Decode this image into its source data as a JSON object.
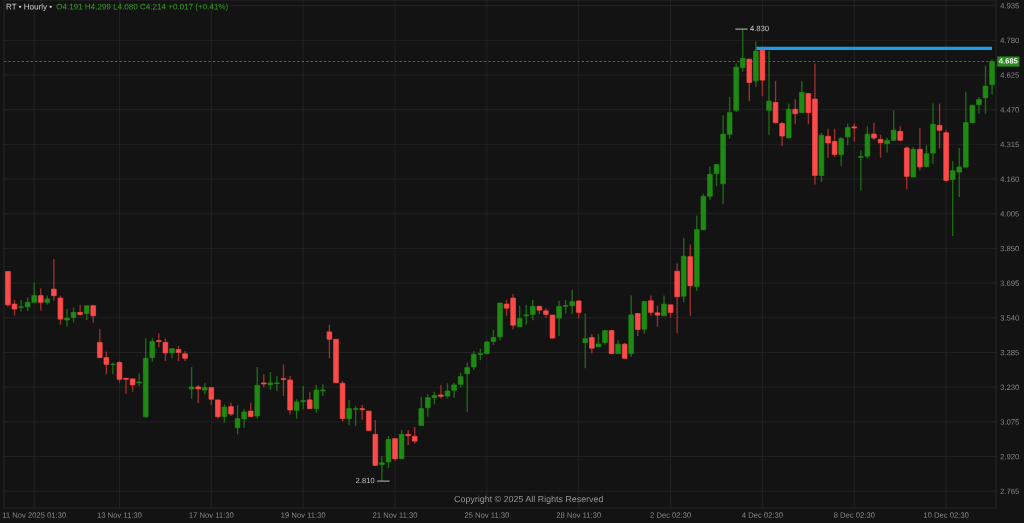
{
  "chart_data": {
    "type": "candlestick",
    "title": "RT • Hourly •",
    "subtitle": "O4.191 H4.299 L4.080 C4.214 +0.017 (+0.41%)",
    "categories": [
      null,
      null,
      null,
      null,
      "11 Nov 2025 01:30",
      null,
      null,
      null,
      null,
      null,
      null,
      null,
      null,
      null,
      null,
      null,
      null,
      "13 Nov 11:30",
      null,
      null,
      null,
      null,
      null,
      null,
      null,
      null,
      null,
      null,
      null,
      null,
      null,
      "17 Nov 11:30",
      null,
      null,
      null,
      null,
      null,
      null,
      null,
      null,
      null,
      null,
      null,
      null,
      null,
      "19 Nov 11:30",
      null,
      null,
      null,
      null,
      null,
      null,
      null,
      null,
      null,
      null,
      null,
      null,
      null,
      "21 Nov 11:30",
      null,
      null,
      null,
      null,
      null,
      null,
      null,
      null,
      null,
      null,
      null,
      null,
      null,
      "25 Nov 11:30",
      null,
      null,
      null,
      null,
      null,
      null,
      null,
      null,
      null,
      null,
      null,
      null,
      null,
      "28 Nov 11:30",
      null,
      null,
      null,
      null,
      null,
      null,
      null,
      null,
      null,
      null,
      null,
      null,
      null,
      "2 Dec 02:30",
      null,
      null,
      null,
      null,
      null,
      null,
      null,
      null,
      null,
      null,
      null,
      null,
      null,
      "4 Dec 02:30",
      null,
      null,
      null,
      null,
      null,
      null,
      null,
      null,
      null,
      null,
      null,
      null,
      null,
      "8 Dec 02:30",
      null,
      null,
      null,
      null,
      null,
      null,
      null,
      null,
      null,
      null,
      null,
      null,
      null,
      "10 Dec 02:30",
      null,
      null,
      null,
      null,
      null,
      null,
      null
    ],
    "ohlc": [
      [
        3.747,
        3.747,
        3.589,
        3.598
      ],
      [
        3.601,
        3.619,
        3.549,
        3.579
      ],
      [
        3.586,
        3.619,
        3.568,
        3.589
      ],
      [
        3.589,
        3.631,
        3.571,
        3.609
      ],
      [
        3.609,
        3.698,
        3.609,
        3.639
      ],
      [
        3.639,
        3.671,
        3.571,
        3.609
      ],
      [
        3.609,
        3.639,
        3.598,
        3.624
      ],
      [
        3.668,
        3.803,
        3.616,
        3.639
      ],
      [
        3.628,
        3.639,
        3.509,
        3.534
      ],
      [
        3.53,
        3.579,
        3.5,
        3.538
      ],
      [
        3.541,
        3.586,
        3.519,
        3.564
      ],
      [
        3.564,
        3.598,
        3.549,
        3.555
      ],
      [
        3.559,
        3.594,
        3.53,
        3.594
      ],
      [
        3.594,
        3.598,
        3.519,
        3.549
      ],
      [
        3.43,
        3.489,
        3.359,
        3.362
      ],
      [
        3.362,
        3.389,
        3.288,
        3.332
      ],
      [
        3.331,
        3.34,
        3.288,
        3.333
      ],
      [
        3.34,
        3.347,
        3.25,
        3.265
      ],
      [
        3.27,
        3.27,
        3.201,
        3.265
      ],
      [
        3.267,
        3.267,
        3.21,
        3.24
      ],
      [
        3.249,
        3.291,
        3.235,
        3.253
      ],
      [
        3.098,
        3.449,
        3.093,
        3.359
      ],
      [
        3.362,
        3.449,
        3.344,
        3.434
      ],
      [
        3.438,
        3.47,
        3.407,
        3.434
      ],
      [
        3.43,
        3.447,
        3.347,
        3.383
      ],
      [
        3.383,
        3.402,
        3.359,
        3.402
      ],
      [
        3.398,
        3.414,
        3.347,
        3.385
      ],
      [
        3.379,
        3.392,
        3.347,
        3.359
      ],
      [
        3.222,
        3.32,
        3.177,
        3.231
      ],
      [
        3.231,
        3.24,
        3.158,
        3.222
      ],
      [
        3.217,
        3.25,
        3.198,
        3.228
      ],
      [
        3.228,
        3.228,
        3.15,
        3.176
      ],
      [
        3.173,
        3.173,
        3.09,
        3.098
      ],
      [
        3.098,
        3.153,
        3.071,
        3.141
      ],
      [
        3.143,
        3.161,
        3.101,
        3.11
      ],
      [
        3.049,
        3.15,
        3.019,
        3.089
      ],
      [
        3.089,
        3.131,
        3.049,
        3.119
      ],
      [
        3.123,
        3.161,
        3.099,
        3.099
      ],
      [
        3.101,
        3.32,
        3.09,
        3.238
      ],
      [
        3.249,
        3.288,
        3.228,
        3.244
      ],
      [
        3.241,
        3.298,
        3.217,
        3.249
      ],
      [
        3.246,
        3.28,
        3.213,
        3.249
      ],
      [
        3.268,
        3.332,
        3.191,
        3.264
      ],
      [
        3.262,
        3.28,
        3.108,
        3.128
      ],
      [
        3.126,
        3.176,
        3.089,
        3.164
      ],
      [
        3.165,
        3.235,
        3.131,
        3.17
      ],
      [
        3.173,
        3.21,
        3.134,
        3.134
      ],
      [
        3.134,
        3.24,
        3.116,
        3.217
      ],
      [
        3.213,
        3.243,
        3.19,
        3.217
      ],
      [
        3.477,
        3.509,
        3.359,
        3.444
      ],
      [
        3.444,
        3.444,
        3.25,
        3.25
      ],
      [
        3.247,
        3.258,
        3.078,
        3.09
      ],
      [
        3.089,
        3.173,
        3.059,
        3.134
      ],
      [
        3.131,
        3.146,
        3.056,
        3.134
      ],
      [
        3.134,
        3.15,
        3.084,
        3.129
      ],
      [
        3.123,
        3.123,
        3.034,
        3.037
      ],
      [
        3.019,
        3.083,
        2.877,
        2.881
      ],
      [
        2.884,
        2.922,
        2.81,
        2.892
      ],
      [
        2.896,
        3.011,
        2.869,
        2.996
      ],
      [
        3.0,
        3.0,
        2.899,
        2.91
      ],
      [
        2.91,
        3.038,
        2.91,
        3.019
      ],
      [
        3.019,
        3.038,
        2.971,
        3.013
      ],
      [
        3.01,
        3.052,
        2.978,
        2.989
      ],
      [
        3.059,
        3.187,
        3.059,
        3.134
      ],
      [
        3.138,
        3.198,
        3.098,
        3.183
      ],
      [
        3.183,
        3.21,
        3.153,
        3.193
      ],
      [
        3.195,
        3.24,
        3.179,
        3.189
      ],
      [
        3.19,
        3.247,
        3.179,
        3.213
      ],
      [
        3.216,
        3.25,
        3.183,
        3.24
      ],
      [
        3.243,
        3.295,
        3.228,
        3.277
      ],
      [
        3.29,
        3.34,
        3.12,
        3.317
      ],
      [
        3.32,
        3.392,
        3.307,
        3.377
      ],
      [
        3.376,
        3.402,
        3.35,
        3.38
      ],
      [
        3.38,
        3.437,
        3.377,
        3.432
      ],
      [
        3.434,
        3.486,
        3.419,
        3.452
      ],
      [
        3.455,
        3.606,
        3.44,
        3.606
      ],
      [
        3.601,
        3.621,
        3.549,
        3.583
      ],
      [
        3.628,
        3.646,
        3.489,
        3.507
      ],
      [
        3.5,
        3.594,
        3.5,
        3.537
      ],
      [
        3.549,
        3.598,
        3.509,
        3.553
      ],
      [
        3.555,
        3.619,
        3.529,
        3.591
      ],
      [
        3.591,
        3.594,
        3.556,
        3.574
      ],
      [
        3.571,
        3.583,
        3.538,
        3.555
      ],
      [
        3.552,
        3.552,
        3.449,
        3.449
      ],
      [
        3.538,
        3.616,
        3.459,
        3.591
      ],
      [
        3.591,
        3.619,
        3.559,
        3.595
      ],
      [
        3.594,
        3.664,
        3.556,
        3.612
      ],
      [
        3.615,
        3.619,
        3.537,
        3.564
      ],
      [
        3.429,
        3.559,
        3.314,
        3.447
      ],
      [
        3.452,
        3.467,
        3.38,
        3.404
      ],
      [
        3.41,
        3.467,
        3.41,
        3.423
      ],
      [
        3.429,
        3.483,
        3.419,
        3.483
      ],
      [
        3.483,
        3.483,
        3.38,
        3.38
      ],
      [
        3.38,
        3.44,
        3.38,
        3.422
      ],
      [
        3.422,
        3.428,
        3.355,
        3.359
      ],
      [
        3.38,
        3.639,
        3.365,
        3.553
      ],
      [
        3.559,
        3.559,
        3.459,
        3.488
      ],
      [
        3.489,
        3.613,
        3.47,
        3.613
      ],
      [
        3.616,
        3.639,
        3.549,
        3.564
      ],
      [
        3.562,
        3.594,
        3.5,
        3.552
      ],
      [
        3.549,
        3.639,
        3.549,
        3.601
      ],
      [
        3.598,
        3.598,
        3.541,
        3.564
      ],
      [
        3.748,
        3.783,
        3.47,
        3.634
      ],
      [
        3.636,
        3.897,
        3.609,
        3.815
      ],
      [
        3.813,
        3.867,
        3.549,
        3.683
      ],
      [
        3.68,
        3.997,
        3.661,
        3.934
      ],
      [
        3.933,
        4.094,
        3.933,
        4.083
      ],
      [
        4.083,
        4.216,
        4.067,
        4.181
      ],
      [
        4.184,
        4.225,
        4.128,
        4.225
      ],
      [
        4.139,
        4.445,
        4.049,
        4.36
      ],
      [
        4.36,
        4.527,
        4.34,
        4.457
      ],
      [
        4.467,
        4.676,
        4.46,
        4.66
      ],
      [
        4.658,
        4.83,
        4.639,
        4.699
      ],
      [
        4.696,
        4.696,
        4.508,
        4.591
      ],
      [
        4.599,
        4.774,
        4.572,
        4.732
      ],
      [
        4.736,
        4.736,
        4.532,
        4.602
      ],
      [
        4.467,
        4.732,
        4.358,
        4.508
      ],
      [
        4.502,
        4.599,
        4.408,
        4.412
      ],
      [
        4.408,
        4.415,
        4.308,
        4.352
      ],
      [
        4.345,
        4.497,
        4.34,
        4.472
      ],
      [
        4.472,
        4.517,
        4.405,
        4.452
      ],
      [
        4.457,
        4.597,
        4.457,
        4.547
      ],
      [
        4.542,
        4.542,
        4.405,
        4.457
      ],
      [
        4.517,
        4.676,
        4.136,
        4.176
      ],
      [
        4.176,
        4.366,
        4.146,
        4.355
      ],
      [
        4.351,
        4.385,
        4.255,
        4.321
      ],
      [
        4.328,
        4.385,
        4.258,
        4.27
      ],
      [
        4.269,
        4.348,
        4.218,
        4.34
      ],
      [
        4.348,
        4.408,
        4.311,
        4.39
      ],
      [
        4.393,
        4.408,
        4.328,
        4.388
      ],
      [
        4.257,
        4.288,
        4.109,
        4.261
      ],
      [
        4.262,
        4.396,
        4.251,
        4.36
      ],
      [
        4.361,
        4.412,
        4.333,
        4.343
      ],
      [
        4.337,
        4.358,
        4.255,
        4.323
      ],
      [
        4.318,
        4.345,
        4.278,
        4.333
      ],
      [
        4.333,
        4.467,
        4.333,
        4.378
      ],
      [
        4.373,
        4.396,
        4.33,
        4.333
      ],
      [
        4.299,
        4.306,
        4.113,
        4.172
      ],
      [
        4.169,
        4.303,
        4.169,
        4.293
      ],
      [
        4.293,
        4.388,
        4.199,
        4.214
      ],
      [
        4.216,
        4.311,
        4.211,
        4.273
      ],
      [
        4.276,
        4.497,
        4.228,
        4.405
      ],
      [
        4.4,
        4.497,
        4.296,
        4.378
      ],
      [
        4.367,
        4.378,
        4.149,
        4.154
      ],
      [
        4.158,
        4.239,
        3.905,
        4.197
      ],
      [
        4.191,
        4.299,
        4.08,
        4.214
      ],
      [
        4.213,
        4.55,
        4.213,
        4.412
      ],
      [
        4.412,
        4.49,
        4.412,
        4.49
      ],
      [
        4.493,
        4.527,
        4.452,
        4.515
      ],
      [
        4.523,
        4.666,
        4.452,
        4.575
      ],
      [
        4.582,
        4.694,
        4.537,
        4.685
      ]
    ],
    "series": [
      {
        "type": "line",
        "color": "#1e9de6",
        "values": [
          null,
          null,
          null,
          null,
          null,
          null,
          null,
          null,
          null,
          null,
          null,
          null,
          null,
          null,
          null,
          null,
          null,
          null,
          null,
          null,
          null,
          null,
          null,
          null,
          null,
          null,
          null,
          null,
          null,
          null,
          null,
          null,
          null,
          null,
          null,
          null,
          null,
          null,
          null,
          null,
          null,
          null,
          null,
          null,
          null,
          null,
          null,
          null,
          null,
          null,
          null,
          null,
          null,
          null,
          null,
          null,
          null,
          null,
          null,
          null,
          null,
          null,
          null,
          null,
          null,
          null,
          null,
          null,
          null,
          null,
          null,
          null,
          null,
          null,
          null,
          null,
          null,
          null,
          null,
          null,
          null,
          null,
          null,
          null,
          null,
          null,
          null,
          null,
          null,
          null,
          null,
          null,
          null,
          null,
          null,
          null,
          null,
          null,
          null,
          null,
          null,
          null,
          null,
          null,
          null,
          null,
          null,
          null,
          null,
          null,
          null,
          null,
          null,
          null,
          4.744,
          4.744,
          4.744,
          4.744,
          4.744,
          4.744,
          4.744,
          4.744,
          4.744,
          4.744,
          4.744,
          4.744,
          4.744,
          4.744,
          4.744,
          4.744,
          4.744,
          4.744,
          4.744,
          4.744,
          4.744,
          4.744,
          4.744,
          4.744,
          4.744,
          4.744,
          4.744,
          4.744,
          4.744,
          4.744,
          4.744,
          4.744,
          4.744,
          4.744,
          4.744,
          4.744,
          4.744
        ]
      }
    ],
    "ylim": [
      2.69,
      4.96
    ],
    "yticks": [
      4.935,
      {
        "value": 4.78,
        "label": "4.780"
      },
      4.625,
      {
        "value": 4.47,
        "label": "4.470"
      },
      4.315,
      {
        "value": 4.16,
        "label": "4.160"
      },
      4.005,
      {
        "value": 3.85,
        "label": "3.850"
      },
      3.695,
      {
        "value": 3.54,
        "label": "3.540"
      },
      3.385,
      {
        "value": 3.23,
        "label": "3.230"
      },
      3.075,
      {
        "value": 2.92,
        "label": "2.920"
      },
      2.765
    ],
    "ref_lines": [
      {
        "axis": "y",
        "value": 4.685,
        "label": "4.685",
        "color": "#2a8a1c",
        "line_style": "dotted"
      }
    ],
    "annotations": [
      "4.830",
      "2.810",
      "Copyright © 2025 All Rights Reserved"
    ],
    "grid": true
  }
}
